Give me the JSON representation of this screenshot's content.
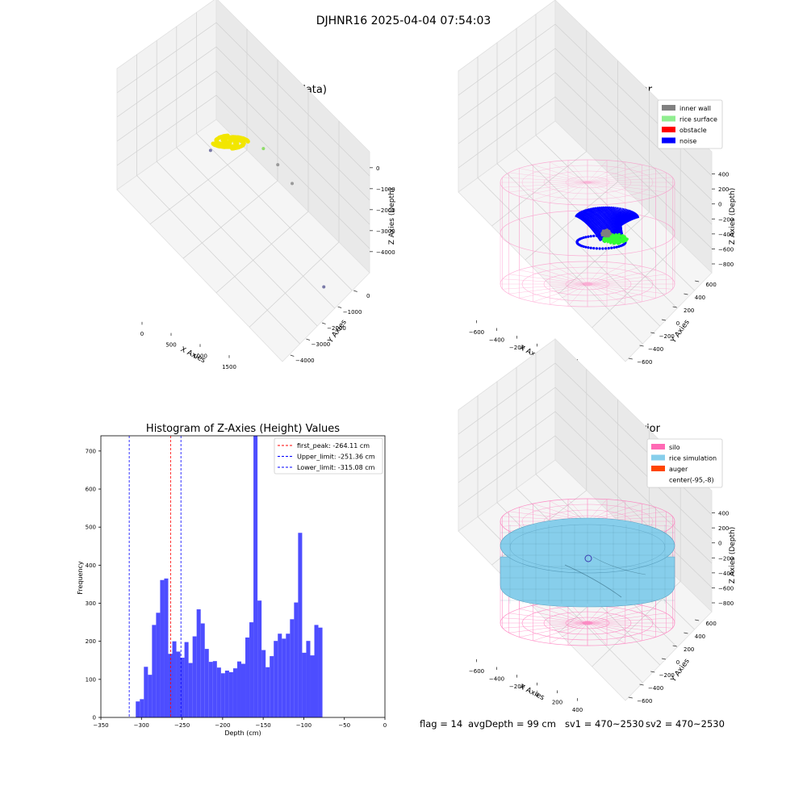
{
  "figure": {
    "title": "DJHNR16 2025-04-04 07:54:03",
    "status": {
      "flag": "flag = 14",
      "avg_depth": "avgDepth = 99 cm",
      "sv1": "sv1 = 470~2530",
      "sv2": "sv2 = 470~2530"
    }
  },
  "colors": {
    "raw_points": "#f2e600",
    "inner_wall": "#808080",
    "rice_surface": "#90ee90",
    "obstacle": "#ff0000",
    "noise": "#0000ff",
    "silo_mesh": "#ff69b4",
    "rice_simulation": "#87ceeb",
    "auger": "#ff4500",
    "hist_bars": "#4d4dff",
    "peak_line": "#ff0000",
    "limit_line": "#0000ff"
  },
  "chart_data": [
    {
      "type": "scatter",
      "subtype": "3d",
      "title": "3D Plot of Silo Interior(row data)",
      "xlabel": "X Axies",
      "ylabel": "Y Axies",
      "zlabel": "Z Axies (Depth)",
      "x_ticks": [
        "0",
        "500",
        "1000",
        "1500"
      ],
      "y_ticks": [
        "0",
        "−1000",
        "−2000",
        "−3000",
        "−4000"
      ],
      "z_ticks": [
        "0",
        "−1000",
        "−2000",
        "−3000",
        "−4000"
      ],
      "xlim": [
        -200,
        1800
      ],
      "ylim": [
        -4300,
        300
      ],
      "zlim": [
        -4500,
        200
      ],
      "points": [
        {
          "x": 50,
          "y": 200,
          "z": -100,
          "color": "#f2e600"
        },
        {
          "x": 120,
          "y": 180,
          "z": -80,
          "color": "#f2e600"
        },
        {
          "x": 200,
          "y": 230,
          "z": -120,
          "color": "#f2e600"
        },
        {
          "x": 80,
          "y": 150,
          "z": -150,
          "color": "#f2e600"
        },
        {
          "x": 500,
          "y": -200,
          "z": -3000,
          "color": "#8fdc6a"
        },
        {
          "x": 700,
          "y": -300,
          "z": -2900,
          "color": "#9a9a9a"
        },
        {
          "x": 900,
          "y": -400,
          "z": -2900,
          "color": "#9a9a9a"
        },
        {
          "x": 200,
          "y": -1500,
          "z": -3300,
          "color": "#7a7aa8"
        },
        {
          "x": 1700,
          "y": -2000,
          "z": -3300,
          "color": "#7a7aa8"
        }
      ]
    },
    {
      "type": "scatter",
      "subtype": "3d",
      "title": "3D classify of Silo Interior",
      "xlabel": "X Axies",
      "ylabel": "Y Axies",
      "zlabel": "Z Axies (Depth)",
      "x_ticks": [
        "−600",
        "−400",
        "−200",
        "0",
        "200",
        "400"
      ],
      "y_ticks": [
        "600",
        "400",
        "200",
        "0",
        "−200",
        "−400",
        "−600"
      ],
      "z_ticks": [
        "400",
        "200",
        "0",
        "−200",
        "−400",
        "−600",
        "−800"
      ],
      "legend": [
        {
          "label": "inner wall",
          "color": "#808080"
        },
        {
          "label": "rice surface",
          "color": "#90ee90"
        },
        {
          "label": "obstacle",
          "color": "#ff0000"
        },
        {
          "label": "noise",
          "color": "#0000ff"
        }
      ]
    },
    {
      "type": "bar",
      "subtype": "histogram",
      "title": "Histogram of Z-Axies (Height) Values",
      "xlabel": "Depth (cm)",
      "ylabel": "Frequency",
      "xlim": [
        -350,
        0
      ],
      "ylim": [
        0,
        740
      ],
      "x_ticks": [
        "−350",
        "−300",
        "−250",
        "−200",
        "−150",
        "−100",
        "−50",
        "0"
      ],
      "y_ticks": [
        "0",
        "100",
        "200",
        "300",
        "400",
        "500",
        "600",
        "700"
      ],
      "bin_start": -307,
      "bin_width": 5,
      "values": [
        42,
        48,
        133,
        112,
        243,
        275,
        361,
        365,
        167,
        200,
        173,
        157,
        198,
        143,
        213,
        284,
        247,
        180,
        146,
        148,
        131,
        116,
        123,
        119,
        129,
        147,
        141,
        210,
        250,
        740,
        307,
        177,
        132,
        161,
        201,
        220,
        207,
        220,
        258,
        302,
        485,
        170,
        201,
        163,
        243,
        236
      ],
      "vlines": [
        {
          "label": "first_peak: -264.11 cm",
          "x": -264.11,
          "color": "#ff0000"
        },
        {
          "label": "Upper_limit: -251.36 cm",
          "x": -251.36,
          "color": "#0000ff"
        },
        {
          "label": "Lower_limit: -315.08 cm",
          "x": -315.08,
          "color": "#0000ff"
        }
      ]
    },
    {
      "type": "scatter",
      "subtype": "3d-surface",
      "title": "3D simulation of Silo Interior",
      "xlabel": "X Axies",
      "ylabel": "Y Axies",
      "zlabel": "Z Axies (Depth)",
      "x_ticks": [
        "−600",
        "−400",
        "−200",
        "0",
        "200",
        "400"
      ],
      "y_ticks": [
        "600",
        "400",
        "200",
        "0",
        "−200",
        "−400",
        "−600"
      ],
      "z_ticks": [
        "400",
        "200",
        "0",
        "−200",
        "−400",
        "−600",
        "−800"
      ],
      "legend": [
        {
          "label": "silo",
          "color": "#ff69b4"
        },
        {
          "label": "rice simulation",
          "color": "#87ceeb"
        },
        {
          "label": "auger",
          "color": "#ff4500"
        },
        {
          "label": "center(-95,-8)",
          "color": "none"
        }
      ]
    }
  ]
}
